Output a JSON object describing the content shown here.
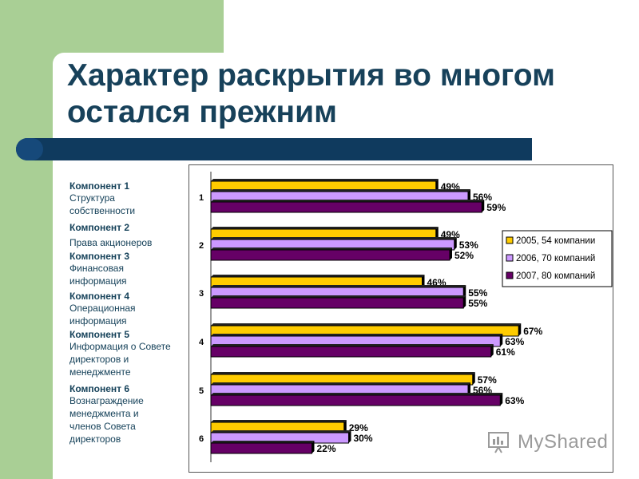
{
  "slide": {
    "title_lines": [
      "Характер раскрытия во многом",
      "остался прежним"
    ]
  },
  "components": [
    {
      "heading": "Компонент 1",
      "description": "Структура собственности"
    },
    {
      "heading": "Компонент 2",
      "description": "Права акционеров"
    },
    {
      "heading": "Компонент 3",
      "description": "Финансовая информация"
    },
    {
      "heading": "Компонент 4",
      "description": "Операционная информация"
    },
    {
      "heading": "Компонент 5",
      "description": "Информация о Совете директоров и менеджменте"
    },
    {
      "heading": "Компонент 6",
      "description": "Вознаграждение менеджмента и членов Совета директоров"
    }
  ],
  "watermark": {
    "text": "MyShared"
  },
  "colors": {
    "series_2005": "#ffcc00",
    "series_2006": "#cc99ff",
    "series_2007": "#660066",
    "title": "#17415a",
    "navy": "#0f3a5e"
  },
  "chart_data": {
    "type": "bar",
    "orientation": "horizontal",
    "categories": [
      "1",
      "2",
      "3",
      "4",
      "5",
      "6"
    ],
    "series": [
      {
        "name": "2005, 54 компании",
        "values": [
          49,
          49,
          46,
          67,
          57,
          29
        ],
        "labels": [
          "49%",
          "49%",
          "46%",
          "67%",
          "57%",
          "29%"
        ]
      },
      {
        "name": "2006, 70 компаний",
        "values": [
          56,
          53,
          55,
          63,
          56,
          30
        ],
        "labels": [
          "56%",
          "53%",
          "55%",
          "63%",
          "56%",
          "30%"
        ]
      },
      {
        "name": "2007, 80 компаний",
        "values": [
          59,
          52,
          55,
          61,
          63,
          22
        ],
        "labels": [
          "59%",
          "52%",
          "55%",
          "61%",
          "63%",
          "22%"
        ]
      }
    ],
    "xlim": [
      0,
      70
    ],
    "legend_position": "right",
    "grid": false,
    "title": "",
    "xlabel": "",
    "ylabel": ""
  }
}
